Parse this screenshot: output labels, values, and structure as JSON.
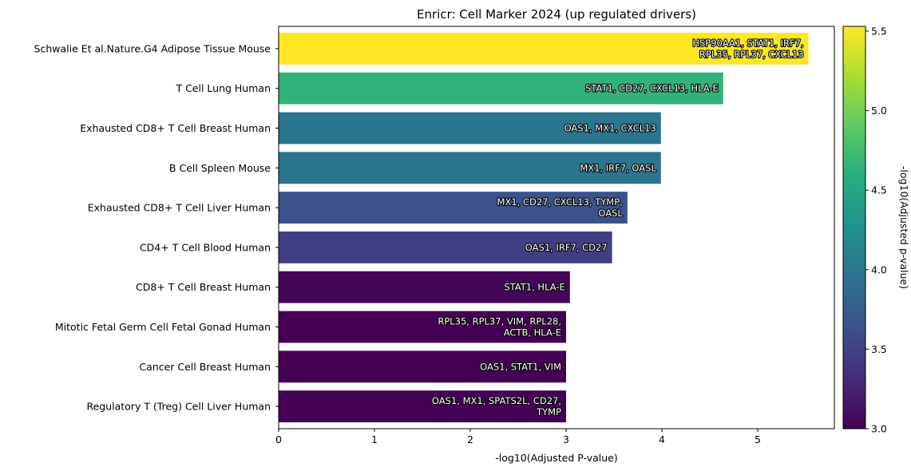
{
  "chart_data": {
    "type": "bar",
    "orientation": "horizontal",
    "title": "Enricr: Cell Marker 2024 (up regulated drivers)",
    "xlabel": "-log10(Adjusted P-value)",
    "ylabel": "",
    "xlim": [
      0,
      5.8
    ],
    "x_ticks": [
      "0",
      "1",
      "2",
      "3",
      "4",
      "5"
    ],
    "categories": [
      "Schwalie Et al.Nature.G4 Adipose Tissue Mouse",
      "T Cell Lung Human",
      "Exhausted CD8+ T Cell Breast Human",
      "B Cell Spleen Mouse",
      "Exhausted CD8+ T Cell Liver Human",
      "CD4+ T Cell Blood Human",
      "CD8+ T Cell Breast Human",
      "Mitotic Fetal Germ Cell Fetal Gonad Human",
      "Cancer Cell Breast Human",
      "Regulatory T (Treg) Cell Liver Human"
    ],
    "values": [
      5.53,
      4.64,
      3.99,
      3.99,
      3.64,
      3.48,
      3.04,
      3.0,
      3.0,
      3.0
    ],
    "bar_labels": [
      [
        "HSP90AA1, STAT1, IRF7,",
        "RPL35, RPL37, CXCL13"
      ],
      [
        "STAT1, CD27, CXCL13, HLA-E"
      ],
      [
        "OAS1, MX1, CXCL13"
      ],
      [
        "MX1, IRF7, OASL"
      ],
      [
        "MX1, CD27, CXCL13, TYMP,",
        "OASL"
      ],
      [
        "OAS1, IRF7, CD27"
      ],
      [
        "STAT1, HLA-E"
      ],
      [
        "RPL35, RPL37, VIM, RPL28,",
        "ACTB, HLA-E"
      ],
      [
        "OAS1, STAT1, VIM"
      ],
      [
        "OAS1, MX1, SPATS2L, CD27,",
        "TYMP"
      ]
    ],
    "colorbar": {
      "label": "-log10(Adjusted p-value)",
      "colormap": "viridis",
      "range": [
        3.0,
        5.53
      ],
      "ticks": [
        "3.0",
        "3.5",
        "4.0",
        "4.5",
        "5.0",
        "5.5"
      ]
    },
    "grid": false,
    "legend": "none"
  }
}
